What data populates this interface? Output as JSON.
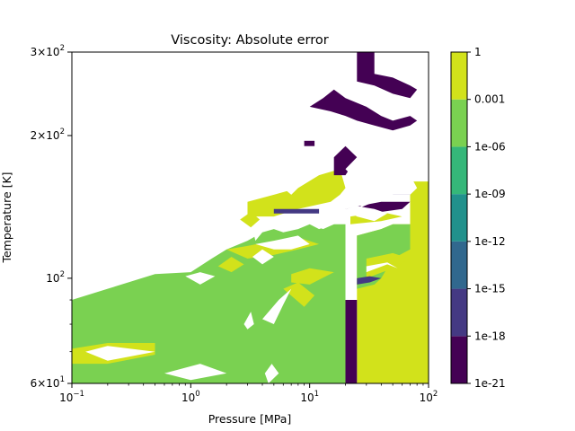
{
  "chart_data": {
    "type": "heatmap",
    "title": "Viscosity: Absolute error",
    "xlabel": "Pressure [MPa]",
    "ylabel": "Temperature [K]",
    "xscale": "log",
    "yscale": "log",
    "xlim": [
      0.1,
      100
    ],
    "ylim": [
      60,
      300
    ],
    "x_ticks": [
      {
        "value": 0.1,
        "base": "10",
        "exp": "−1"
      },
      {
        "value": 1,
        "base": "10",
        "exp": "0"
      },
      {
        "value": 10,
        "base": "10",
        "exp": "1"
      },
      {
        "value": 100,
        "base": "10",
        "exp": "2"
      }
    ],
    "y_ticks": [
      {
        "value": 60,
        "mant": "6",
        "base": "×10",
        "exp": "1"
      },
      {
        "value": 100,
        "mant": "",
        "base": "10",
        "exp": "2"
      },
      {
        "value": 200,
        "mant": "2",
        "base": "×10",
        "exp": "2"
      },
      {
        "value": 300,
        "mant": "3",
        "base": "×10",
        "exp": "2"
      }
    ],
    "colorbar": {
      "levels": [
        "1e-21",
        "1e-18",
        "1e-15",
        "1e-12",
        "1e-09",
        "1e-06",
        "0.001",
        "1"
      ],
      "colors": [
        "#440154",
        "#443983",
        "#31688e",
        "#21918c",
        "#35b779",
        "#7ad151",
        "#d2e21b"
      ]
    },
    "regions": [
      {
        "level": 5,
        "points": [
          [
            0.1,
            60
          ],
          [
            20,
            60
          ],
          [
            20,
            130
          ],
          [
            16,
            130
          ],
          [
            13,
            127
          ],
          [
            10,
            130
          ],
          [
            8,
            127
          ],
          [
            6,
            125
          ],
          [
            5,
            127
          ],
          [
            4,
            125
          ],
          [
            3,
            120
          ],
          [
            2,
            115
          ],
          [
            1.5,
            110
          ],
          [
            1,
            103
          ],
          [
            0.5,
            102
          ],
          [
            0.2,
            95
          ],
          [
            0.1,
            90
          ]
        ]
      },
      {
        "level": 6,
        "points": [
          [
            25,
            60
          ],
          [
            100,
            60
          ],
          [
            100,
            160
          ],
          [
            90,
            160
          ],
          [
            70,
            160
          ],
          [
            70,
            130
          ],
          [
            50,
            130
          ],
          [
            40,
            127
          ],
          [
            25,
            123
          ],
          [
            25,
            90
          ]
        ]
      },
      {
        "level": 5,
        "points": [
          [
            25,
            95
          ],
          [
            35,
            97
          ],
          [
            40,
            100
          ],
          [
            50,
            110
          ],
          [
            70,
            115
          ],
          [
            70,
            130
          ],
          [
            50,
            130
          ],
          [
            40,
            127
          ],
          [
            25,
            123
          ]
        ]
      },
      {
        "level": 6,
        "points": [
          [
            0.1,
            71
          ],
          [
            0.2,
            73
          ],
          [
            0.5,
            73
          ],
          [
            0.5,
            69
          ],
          [
            0.2,
            66
          ],
          [
            0.1,
            66
          ]
        ]
      },
      {
        "level": 6,
        "points": [
          [
            3,
            145
          ],
          [
            5,
            150
          ],
          [
            8,
            155
          ],
          [
            12,
            165
          ],
          [
            18,
            170
          ],
          [
            20,
            155
          ],
          [
            18,
            150
          ],
          [
            15,
            145
          ],
          [
            8,
            140
          ],
          [
            5,
            135
          ],
          [
            3,
            135
          ]
        ]
      },
      {
        "level": 6,
        "points": [
          [
            2,
            115
          ],
          [
            3,
            117
          ],
          [
            5,
            120
          ],
          [
            8,
            122
          ],
          [
            12,
            118
          ],
          [
            8,
            115
          ],
          [
            5,
            112
          ],
          [
            3,
            110
          ]
        ]
      },
      {
        "level": 6,
        "points": [
          [
            7,
            98
          ],
          [
            10,
            97
          ],
          [
            16,
            103
          ],
          [
            10,
            105
          ],
          [
            7,
            102
          ]
        ]
      },
      {
        "level": 6,
        "points": [
          [
            6,
            95
          ],
          [
            9,
            87
          ],
          [
            11,
            92
          ],
          [
            8,
            98
          ]
        ]
      },
      {
        "level": 6,
        "points": [
          [
            1.7,
            106
          ],
          [
            2.2,
            103
          ],
          [
            2.8,
            107
          ],
          [
            2.2,
            111
          ]
        ]
      },
      {
        "level": 6,
        "points": [
          [
            30,
            100
          ],
          [
            50,
            105
          ],
          [
            70,
            110
          ],
          [
            50,
            113
          ],
          [
            30,
            110
          ]
        ]
      },
      {
        "level": 6,
        "points": [
          [
            3.2,
            128
          ],
          [
            3.8,
            133
          ],
          [
            3.2,
            138
          ],
          [
            2.6,
            133
          ]
        ]
      },
      {
        "level": 6,
        "points": [
          [
            22,
            130
          ],
          [
            40,
            132
          ],
          [
            60,
            135
          ],
          [
            40,
            138
          ],
          [
            22,
            135
          ]
        ]
      },
      {
        "level": 0,
        "points": [
          [
            20,
            60
          ],
          [
            25,
            60
          ],
          [
            25,
            90
          ],
          [
            20,
            90
          ]
        ]
      },
      {
        "level": 0,
        "points": [
          [
            0.1,
            60
          ],
          [
            0.1,
            60
          ]
        ]
      },
      {
        "level": 1,
        "points": [
          [
            25,
            97
          ],
          [
            32,
            98
          ],
          [
            40,
            100
          ],
          [
            32,
            101
          ],
          [
            25,
            100
          ]
        ]
      },
      {
        "level": 1,
        "points": [
          [
            50,
            150
          ],
          [
            70,
            150
          ],
          [
            70,
            155
          ],
          [
            50,
            155
          ]
        ]
      },
      {
        "level": 1,
        "points": [
          [
            5,
            137
          ],
          [
            12,
            137
          ],
          [
            12,
            140
          ],
          [
            5,
            140
          ]
        ]
      },
      {
        "level": 0,
        "points": [
          [
            10,
            230
          ],
          [
            13,
            240
          ],
          [
            16,
            250
          ],
          [
            20,
            240
          ],
          [
            30,
            230
          ],
          [
            40,
            220
          ],
          [
            50,
            215
          ],
          [
            70,
            220
          ],
          [
            80,
            215
          ],
          [
            70,
            210
          ],
          [
            50,
            205
          ],
          [
            35,
            210
          ],
          [
            25,
            215
          ],
          [
            20,
            220
          ],
          [
            15,
            225
          ]
        ]
      },
      {
        "level": 0,
        "points": [
          [
            25,
            300
          ],
          [
            35,
            300
          ],
          [
            35,
            270
          ],
          [
            50,
            265
          ],
          [
            70,
            255
          ],
          [
            80,
            250
          ],
          [
            70,
            240
          ],
          [
            50,
            245
          ],
          [
            35,
            255
          ],
          [
            25,
            260
          ]
        ]
      },
      {
        "level": 0,
        "points": [
          [
            9,
            190
          ],
          [
            11,
            190
          ],
          [
            11,
            195
          ],
          [
            9,
            195
          ]
        ]
      },
      {
        "level": 0,
        "points": [
          [
            16,
            165
          ],
          [
            20,
            165
          ],
          [
            25,
            180
          ],
          [
            20,
            190
          ],
          [
            16,
            180
          ]
        ]
      },
      {
        "level": 0,
        "points": [
          [
            20,
            140
          ],
          [
            30,
            135
          ],
          [
            40,
            138
          ],
          [
            60,
            140
          ],
          [
            70,
            145
          ],
          [
            50,
            145
          ],
          [
            40,
            145
          ],
          [
            30,
            143
          ]
        ]
      }
    ],
    "holes": [
      {
        "points": [
          [
            0.2,
            67
          ],
          [
            0.5,
            70
          ],
          [
            0.2,
            72
          ],
          [
            0.13,
            70
          ]
        ]
      },
      {
        "points": [
          [
            1,
            61
          ],
          [
            2,
            63
          ],
          [
            1.2,
            66
          ],
          [
            0.6,
            63
          ]
        ]
      },
      {
        "points": [
          [
            4.5,
            60
          ],
          [
            5.5,
            63
          ],
          [
            4.8,
            66
          ],
          [
            4.2,
            63
          ]
        ]
      },
      {
        "points": [
          [
            3,
            78
          ],
          [
            3.4,
            80
          ],
          [
            3.2,
            85
          ],
          [
            2.8,
            80
          ]
        ]
      },
      {
        "points": [
          [
            5,
            80
          ],
          [
            6,
            88
          ],
          [
            7,
            95
          ],
          [
            5.5,
            90
          ],
          [
            4,
            82
          ]
        ]
      },
      {
        "points": [
          [
            1.2,
            97
          ],
          [
            1.6,
            101
          ],
          [
            1.2,
            103
          ],
          [
            0.9,
            101
          ]
        ]
      },
      {
        "points": [
          [
            4,
            107
          ],
          [
            5,
            111
          ],
          [
            4,
            115
          ],
          [
            3.3,
            111
          ]
        ]
      },
      {
        "points": [
          [
            3.5,
            118
          ],
          [
            5,
            120
          ],
          [
            8,
            123
          ],
          [
            10,
            118
          ],
          [
            7,
            115
          ],
          [
            5,
            115
          ]
        ]
      },
      {
        "points": [
          [
            3.5,
            120
          ],
          [
            4,
            125
          ],
          [
            3.3,
            127
          ]
        ]
      },
      {
        "points": [
          [
            12,
            127
          ],
          [
            16,
            130
          ],
          [
            13,
            133
          ],
          [
            10,
            130
          ]
        ]
      },
      {
        "points": [
          [
            30,
            103
          ],
          [
            45,
            107
          ],
          [
            55,
            105
          ],
          [
            45,
            108
          ],
          [
            30,
            106
          ]
        ]
      },
      {
        "points": [
          [
            20,
            140
          ],
          [
            25,
            135
          ],
          [
            35,
            132
          ],
          [
            45,
            137
          ],
          [
            35,
            140
          ],
          [
            25,
            142
          ]
        ]
      },
      {
        "points": [
          [
            6,
            155
          ],
          [
            7,
            160
          ],
          [
            8,
            155
          ],
          [
            7,
            150
          ]
        ]
      },
      {
        "points": [
          [
            25,
            140
          ],
          [
            30,
            145
          ],
          [
            50,
            160
          ],
          [
            70,
            165
          ],
          [
            80,
            155
          ],
          [
            70,
            150
          ],
          [
            50,
            150
          ],
          [
            35,
            145
          ]
        ]
      },
      {
        "points": [
          [
            20,
            170
          ],
          [
            25,
            160
          ],
          [
            30,
            165
          ],
          [
            25,
            180
          ]
        ]
      }
    ]
  }
}
